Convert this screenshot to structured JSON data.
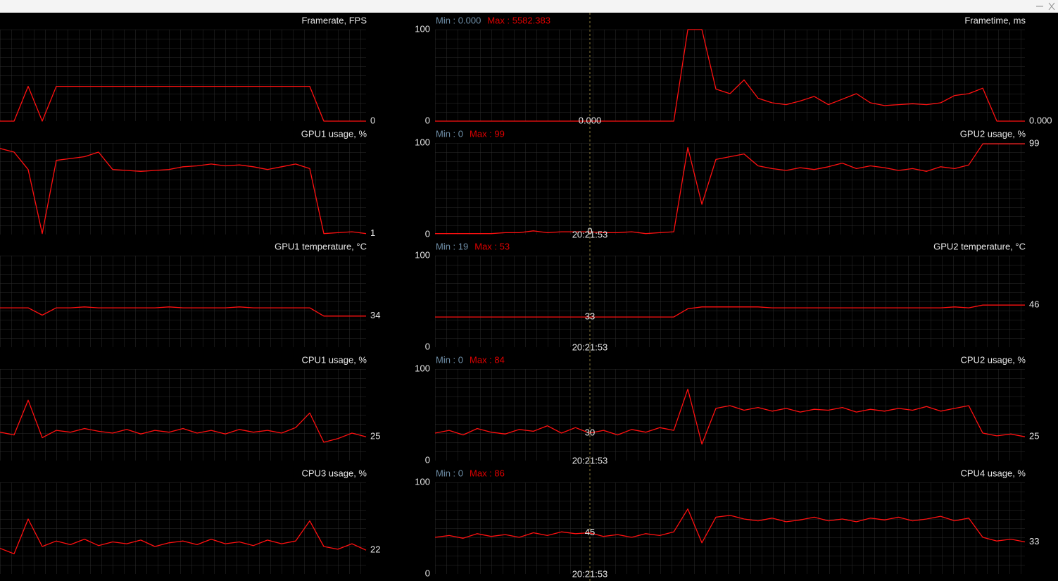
{
  "line_color": "#ff1010",
  "min_color": "#6f8fa8",
  "max_color": "#e00000",
  "left_panels": [
    {
      "title": "Framerate, FPS",
      "current": "0",
      "ylim": [
        0,
        100
      ],
      "values": [
        0,
        0,
        38,
        0,
        38,
        38,
        38,
        38,
        38,
        38,
        38,
        38,
        38,
        38,
        38,
        38,
        38,
        38,
        38,
        38,
        38,
        38,
        38,
        0,
        0,
        0,
        0
      ]
    },
    {
      "title": "GPU1 usage, %",
      "current": "1",
      "ylim": [
        0,
        100
      ],
      "values": [
        94,
        90,
        71,
        1,
        81,
        83,
        85,
        90,
        71,
        70,
        69,
        70,
        71,
        74,
        75,
        77,
        75,
        76,
        74,
        71,
        74,
        77,
        72,
        1,
        2,
        3,
        1
      ]
    },
    {
      "title": "GPU1 temperature, °C",
      "current": "34",
      "ylim": [
        0,
        100
      ],
      "values": [
        43,
        43,
        43,
        35,
        43,
        43,
        44,
        43,
        43,
        43,
        43,
        43,
        44,
        43,
        43,
        43,
        43,
        44,
        43,
        43,
        43,
        43,
        43,
        34,
        34,
        34,
        34
      ]
    },
    {
      "title": "CPU1 usage, %",
      "current": "25",
      "ylim": [
        0,
        100
      ],
      "values": [
        31,
        28,
        66,
        25,
        33,
        31,
        35,
        32,
        30,
        34,
        29,
        33,
        31,
        35,
        30,
        33,
        29,
        34,
        31,
        33,
        30,
        36,
        52,
        20,
        24,
        30,
        26
      ]
    },
    {
      "title": "CPU3 usage, %",
      "current": "22",
      "ylim": [
        0,
        100
      ],
      "values": [
        28,
        22,
        60,
        30,
        36,
        32,
        38,
        31,
        35,
        33,
        37,
        30,
        34,
        36,
        32,
        38,
        33,
        35,
        31,
        37,
        33,
        36,
        58,
        30,
        27,
        33,
        26
      ]
    }
  ],
  "right_panels": [
    {
      "title": "Frametime, ms",
      "current": "0.000",
      "min_label": "Min : 0.000",
      "max_label": "Max : 5582.383",
      "cursor_value": "0.000",
      "ylim": [
        0,
        100
      ],
      "yticks": [
        0,
        100
      ],
      "values": [
        0,
        0,
        0,
        0,
        0,
        0,
        0,
        0,
        0,
        0,
        0,
        0,
        0,
        0,
        0,
        0,
        0,
        0,
        100,
        100,
        35,
        30,
        45,
        25,
        20,
        18,
        22,
        27,
        18,
        24,
        30,
        20,
        17,
        18,
        19,
        18,
        20,
        28,
        30,
        36,
        0,
        0,
        0
      ]
    },
    {
      "title": "GPU2 usage, %",
      "current": "99",
      "min_label": "Min : 0",
      "max_label": "Max : 99",
      "cursor_value": "0",
      "cursor_time": "20:21:53",
      "ylim": [
        0,
        100
      ],
      "yticks": [
        0,
        100
      ],
      "values": [
        1,
        1,
        1,
        1,
        1,
        2,
        2,
        4,
        2,
        3,
        3,
        3,
        2,
        2,
        3,
        1,
        2,
        3,
        95,
        33,
        82,
        85,
        88,
        75,
        72,
        70,
        73,
        71,
        74,
        78,
        72,
        75,
        73,
        70,
        72,
        69,
        74,
        72,
        76,
        99,
        99,
        99,
        99
      ]
    },
    {
      "title": "GPU2 temperature, °C",
      "current": "46",
      "min_label": "Min : 19",
      "max_label": "Max : 53",
      "cursor_value": "33",
      "cursor_time": "20:21:53",
      "ylim": [
        0,
        100
      ],
      "yticks": [
        0,
        100
      ],
      "values": [
        33,
        33,
        33,
        33,
        33,
        33,
        33,
        33,
        33,
        33,
        33,
        33,
        33,
        33,
        33,
        33,
        33,
        33,
        42,
        44,
        44,
        44,
        44,
        44,
        43,
        43,
        43,
        43,
        43,
        43,
        43,
        43,
        43,
        43,
        43,
        43,
        43,
        44,
        43,
        46,
        46,
        46,
        46
      ]
    },
    {
      "title": "CPU2 usage, %",
      "current": "25",
      "min_label": "Min : 0",
      "max_label": "Max : 84",
      "cursor_value": "30",
      "cursor_time": "20:21:53",
      "ylim": [
        0,
        100
      ],
      "yticks": [
        0,
        100
      ],
      "values": [
        30,
        33,
        28,
        35,
        31,
        29,
        34,
        32,
        38,
        30,
        36,
        30,
        33,
        28,
        34,
        31,
        36,
        33,
        78,
        18,
        57,
        60,
        55,
        58,
        54,
        57,
        53,
        56,
        55,
        58,
        53,
        56,
        54,
        57,
        55,
        59,
        54,
        57,
        60,
        30,
        27,
        29,
        26
      ]
    },
    {
      "title": "CPU4 usage, %",
      "current": "33",
      "min_label": "Min : 0",
      "max_label": "Max : 86",
      "cursor_value": "45",
      "cursor_time": "20:21:53",
      "ylim": [
        0,
        100
      ],
      "yticks": [
        0,
        100
      ],
      "values": [
        40,
        42,
        39,
        44,
        41,
        43,
        40,
        45,
        42,
        46,
        44,
        45,
        41,
        43,
        40,
        44,
        42,
        46,
        71,
        34,
        62,
        64,
        60,
        58,
        61,
        57,
        59,
        62,
        58,
        60,
        57,
        61,
        59,
        62,
        58,
        60,
        63,
        58,
        61,
        40,
        36,
        38,
        35
      ]
    }
  ]
}
